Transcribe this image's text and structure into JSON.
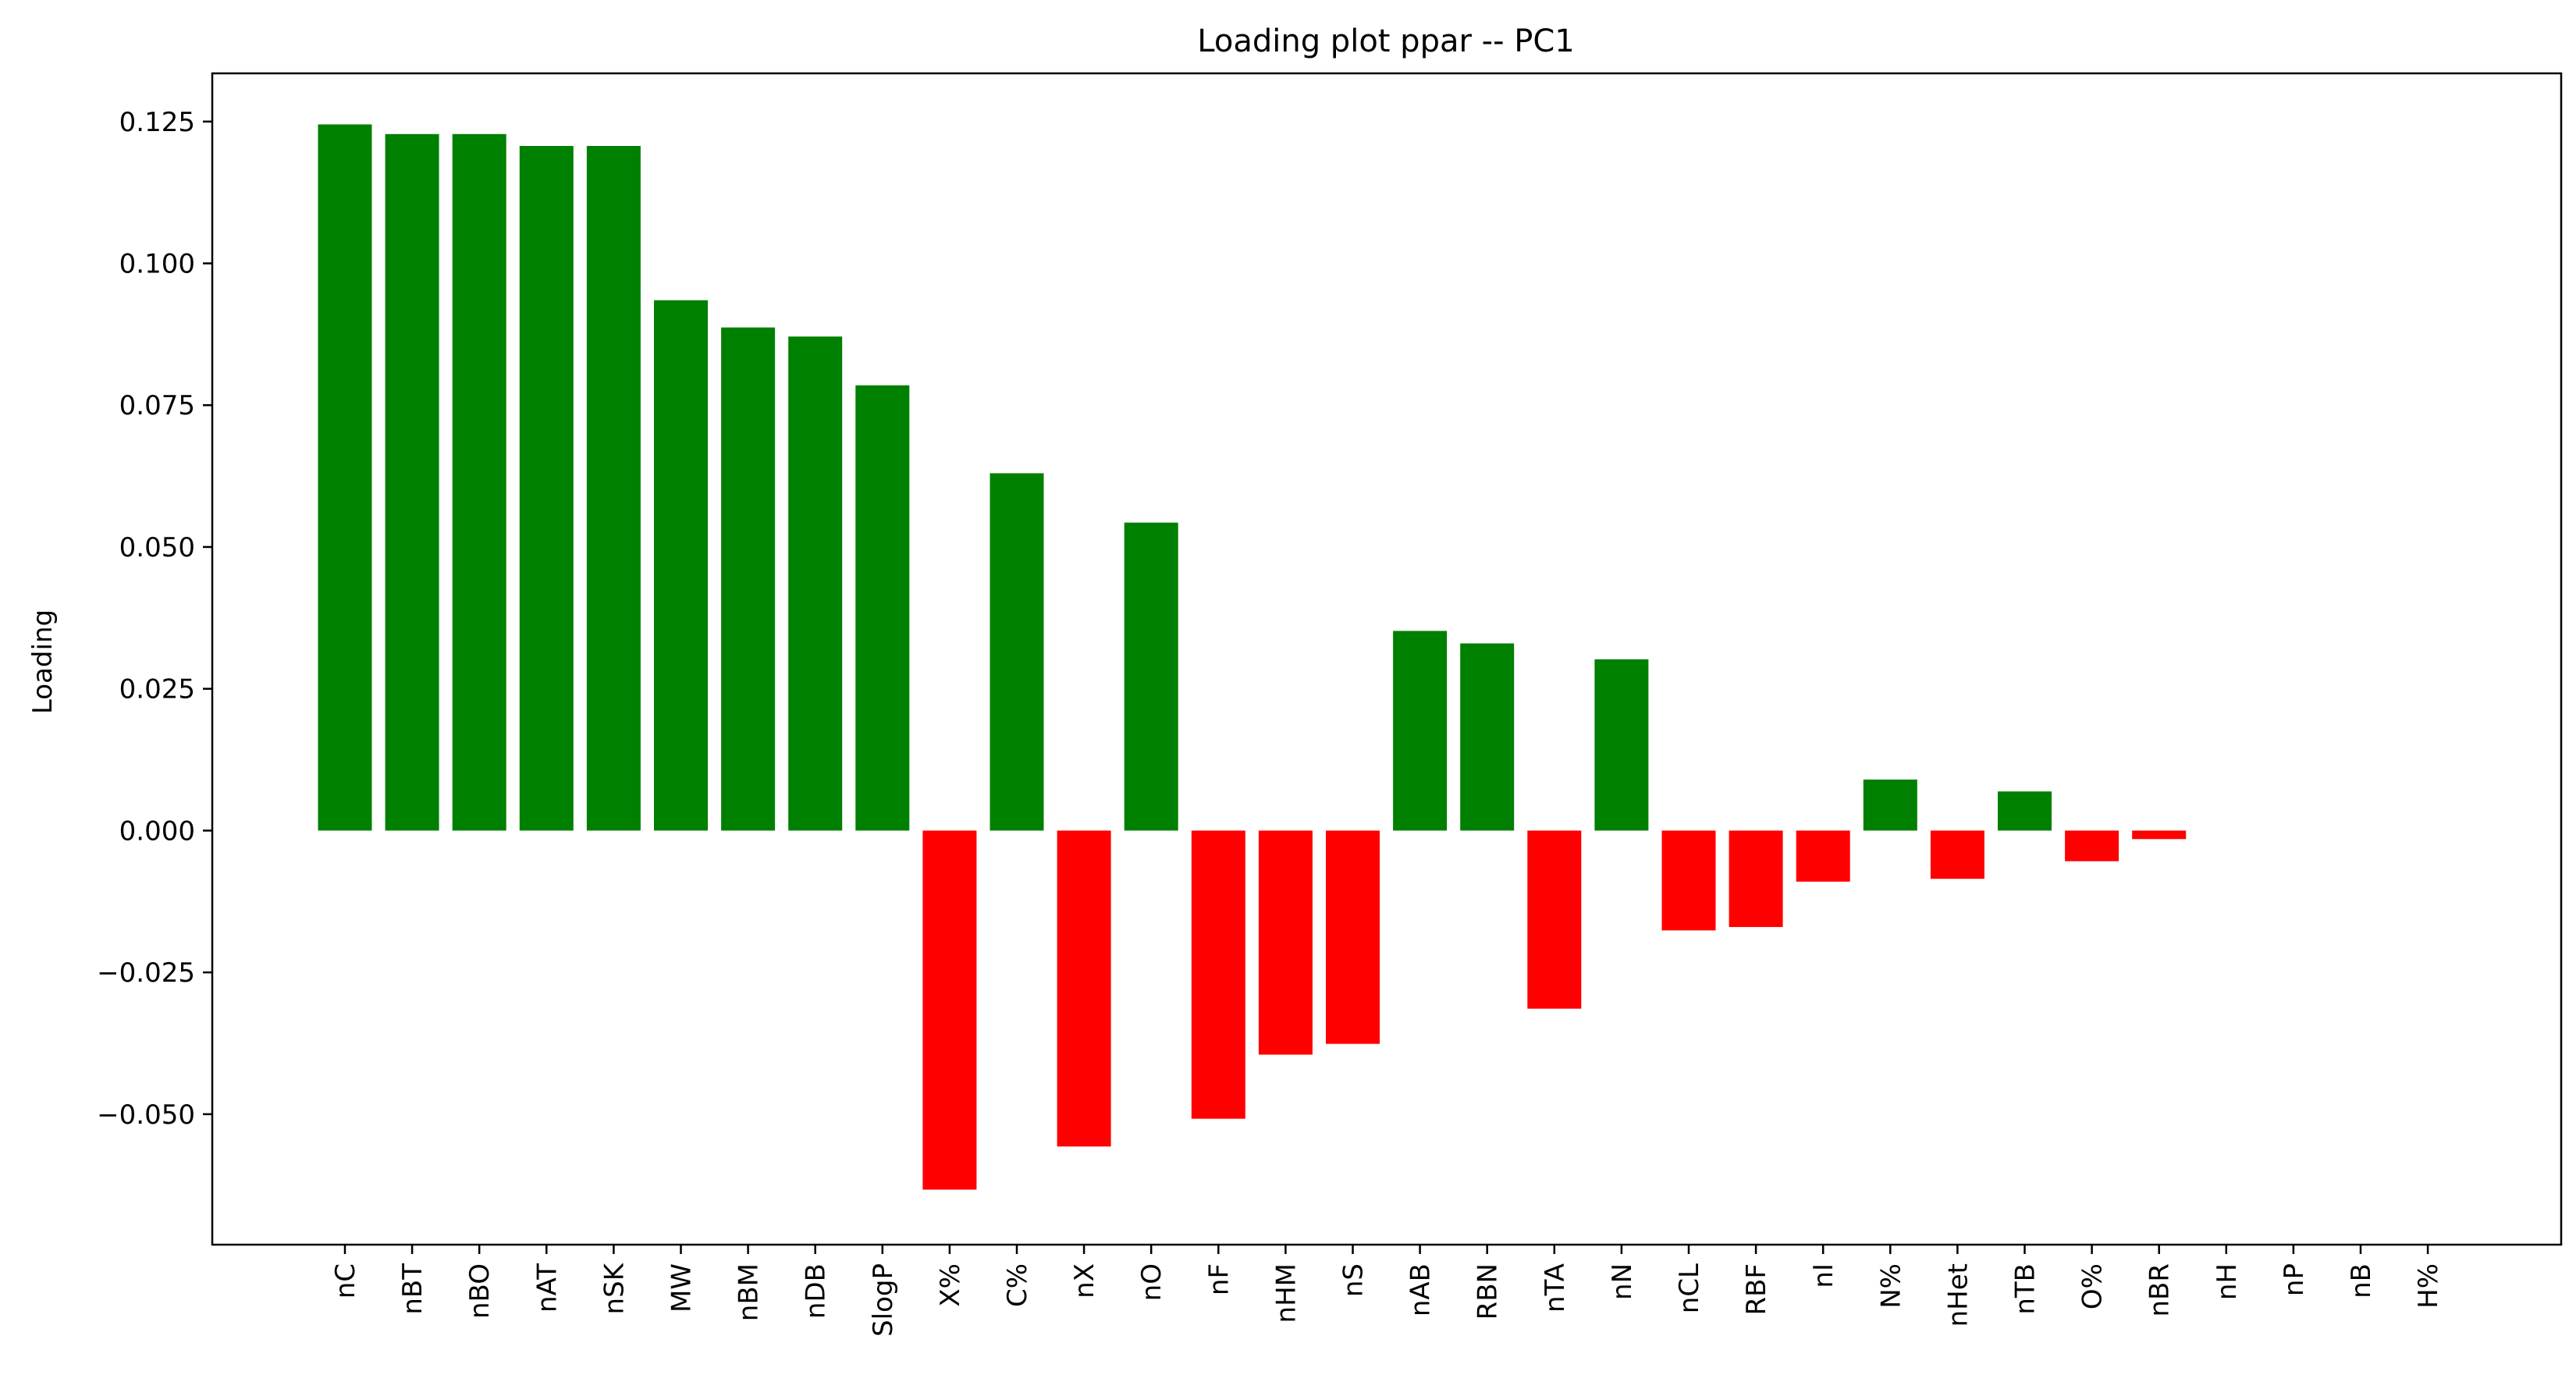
{
  "chart_data": {
    "type": "bar",
    "title": "Loading plot ppar -- PC1",
    "xlabel": "",
    "ylabel": "Loading",
    "ylim": [
      -0.073,
      0.1335
    ],
    "y_ticks": [
      -0.05,
      -0.025,
      0.0,
      0.025,
      0.05,
      0.075,
      0.1,
      0.125
    ],
    "y_tick_labels": [
      "−0.050",
      "−0.025",
      "0.000",
      "0.025",
      "0.050",
      "0.075",
      "0.100",
      "0.125"
    ],
    "categories": [
      "nC",
      "nBT",
      "nBO",
      "nAT",
      "nSK",
      "MW",
      "nBM",
      "nDB",
      "SlogP",
      "X%",
      "C%",
      "nX",
      "nO",
      "nF",
      "nHM",
      "nS",
      "nAB",
      "RBN",
      "nTA",
      "nN",
      "nCL",
      "RBF",
      "nI",
      "N%",
      "nHet",
      "nTB",
      "O%",
      "nBR",
      "nH",
      "nP",
      "nB",
      "H%"
    ],
    "values": [
      0.1245,
      0.1228,
      0.1228,
      0.1207,
      0.1207,
      0.0935,
      0.0887,
      0.0871,
      0.0785,
      -0.0633,
      0.063,
      -0.0557,
      0.0543,
      -0.0508,
      -0.0395,
      -0.0376,
      0.0352,
      0.033,
      -0.0314,
      0.0302,
      -0.0176,
      -0.017,
      -0.009,
      0.009,
      -0.0085,
      0.0069,
      -0.0054,
      -0.0015,
      0.0,
      0.0,
      0.0,
      0.0
    ],
    "colors": {
      "positive": "#008000",
      "negative": "#ff0000",
      "axis": "#000000"
    },
    "grid": false,
    "legend": "none"
  }
}
